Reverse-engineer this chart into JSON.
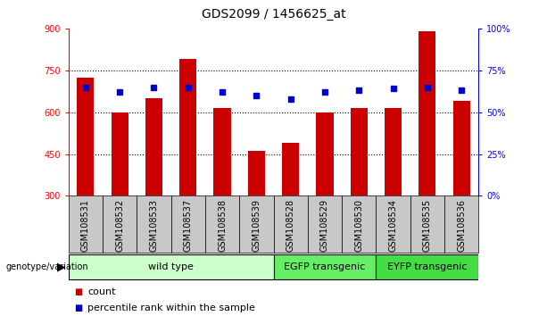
{
  "title": "GDS2099 / 1456625_at",
  "samples": [
    "GSM108531",
    "GSM108532",
    "GSM108533",
    "GSM108537",
    "GSM108538",
    "GSM108539",
    "GSM108528",
    "GSM108529",
    "GSM108530",
    "GSM108534",
    "GSM108535",
    "GSM108536"
  ],
  "counts": [
    725,
    600,
    650,
    790,
    615,
    460,
    490,
    600,
    615,
    615,
    890,
    640
  ],
  "percentiles": [
    65,
    62,
    65,
    65,
    62,
    60,
    58,
    62,
    63,
    64,
    65,
    63
  ],
  "ymin": 300,
  "ymax": 900,
  "yticks": [
    300,
    450,
    600,
    750,
    900
  ],
  "grid_lines": [
    450,
    600,
    750
  ],
  "y2ticks": [
    0,
    25,
    50,
    75,
    100
  ],
  "groups": [
    {
      "label": "wild type",
      "start": 0,
      "end": 6,
      "color": "#ccffcc"
    },
    {
      "label": "EGFP transgenic",
      "start": 6,
      "end": 9,
      "color": "#66ee66"
    },
    {
      "label": "EYFP transgenic",
      "start": 9,
      "end": 12,
      "color": "#44dd44"
    }
  ],
  "bar_color": "#cc0000",
  "dot_color": "#0000cc",
  "bar_width": 0.5,
  "tick_area_color": "#c8c8c8",
  "left_axis_color": "red",
  "right_axis_color": "blue",
  "grid_color": "black",
  "grid_linestyle": "dotted",
  "grid_linewidth": 0.8,
  "title_fontsize": 10,
  "tick_fontsize": 7,
  "label_fontsize": 8,
  "legend_fontsize": 8
}
